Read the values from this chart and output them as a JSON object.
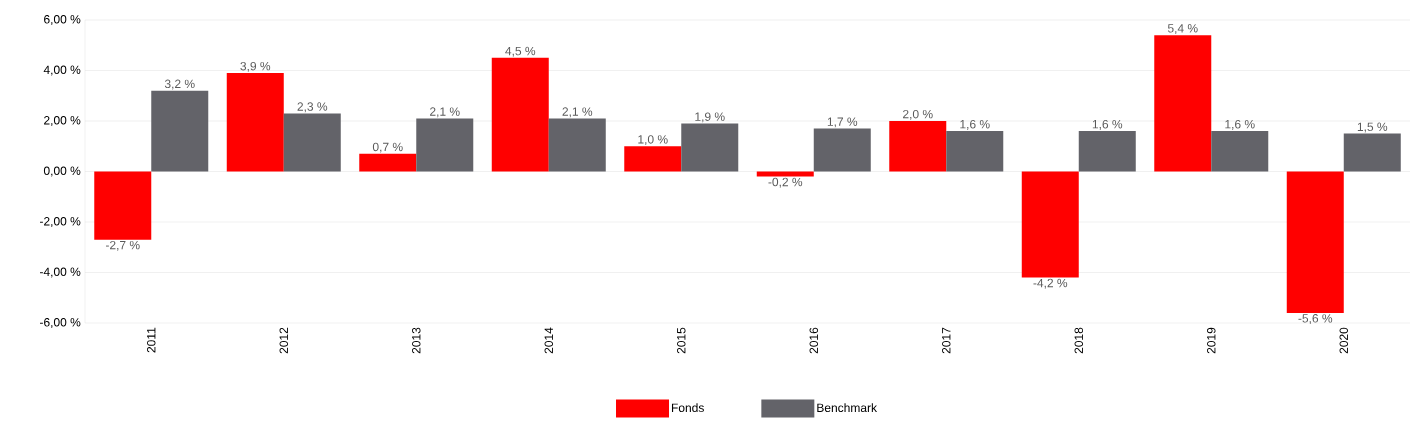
{
  "chart_data": {
    "type": "bar",
    "categories": [
      "2011",
      "2012",
      "2013",
      "2014",
      "2015",
      "2016",
      "2017",
      "2018",
      "2019",
      "2020"
    ],
    "series": [
      {
        "name": "Fonds",
        "color": "#ff0000",
        "values": [
          -2.7,
          3.9,
          0.7,
          4.5,
          1.0,
          -0.2,
          2.0,
          -4.2,
          5.4,
          -5.6
        ],
        "value_labels": [
          "-2,7 %",
          "3,9 %",
          "0,7 %",
          "4,5 %",
          "1,0 %",
          "-0,2 %",
          "2,0 %",
          "-4,2 %",
          "5,4 %",
          "-5,6 %"
        ]
      },
      {
        "name": "Benchmark",
        "color": "#636369",
        "values": [
          3.2,
          2.3,
          2.1,
          2.1,
          1.9,
          1.7,
          1.6,
          1.6,
          1.6,
          1.5
        ],
        "value_labels": [
          "3,2 %",
          "2,3 %",
          "2,1 %",
          "2,1 %",
          "1,9 %",
          "1,7 %",
          "1,6 %",
          "1,6 %",
          "1,6 %",
          "1,5 %"
        ]
      }
    ],
    "ylim": [
      -6,
      6
    ],
    "yticks": [
      {
        "value": -6,
        "label": "-6,00 %"
      },
      {
        "value": -4,
        "label": "-4,00 %"
      },
      {
        "value": -2,
        "label": "-2,00 %"
      },
      {
        "value": 0,
        "label": "0,00 %"
      },
      {
        "value": 2,
        "label": "2,00 %"
      },
      {
        "value": 4,
        "label": "4,00 %"
      },
      {
        "value": 6,
        "label": "6,00 %"
      }
    ],
    "grid": "y",
    "legend": "bottom"
  }
}
